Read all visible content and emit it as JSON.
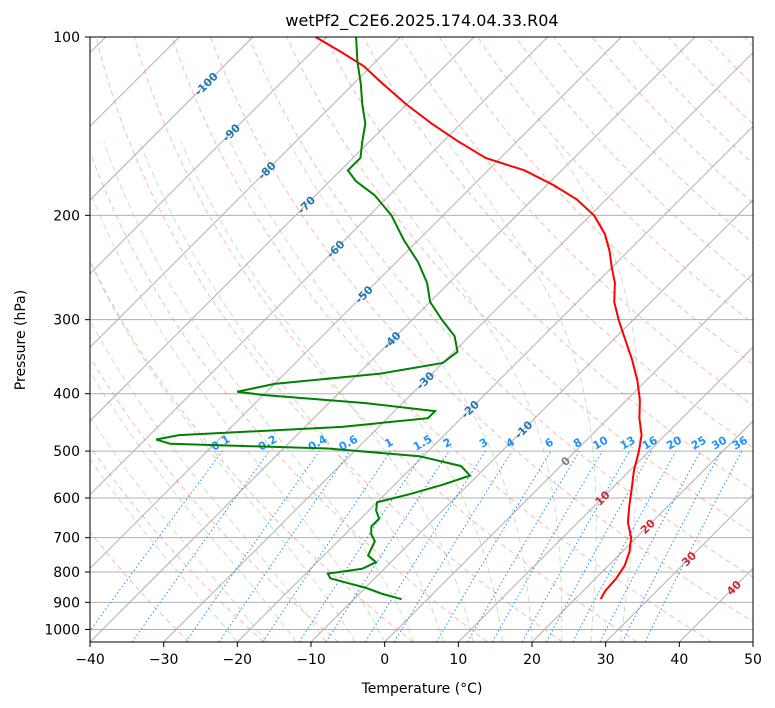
{
  "chart_data": {
    "type": "line",
    "title": "wetPf2_C2E6.2025.174.04.33.R04",
    "xlabel": "Temperature (°C)",
    "ylabel": "Pressure (hPa)",
    "xlim": [
      -40,
      50
    ],
    "ylim": [
      1050,
      100
    ],
    "y_scale": "log",
    "skew_deg": 45,
    "grid": true,
    "x_ticks": [
      -40,
      -30,
      -20,
      -10,
      0,
      10,
      20,
      30,
      40,
      50
    ],
    "y_ticks": [
      100,
      200,
      300,
      400,
      500,
      600,
      700,
      800,
      900,
      1000
    ],
    "series": [
      {
        "color": "#ff0000",
        "points": [
          [
            889,
            23.5
          ],
          [
            860,
            23.0
          ],
          [
            820,
            22.8
          ],
          [
            780,
            22.2
          ],
          [
            740,
            21.0
          ],
          [
            700,
            19.3
          ],
          [
            660,
            16.8
          ],
          [
            620,
            14.8
          ],
          [
            580,
            12.8
          ],
          [
            540,
            10.6
          ],
          [
            500,
            8.6
          ],
          [
            470,
            6.8
          ],
          [
            440,
            4.2
          ],
          [
            410,
            1.8
          ],
          [
            380,
            -1.2
          ],
          [
            350,
            -4.8
          ],
          [
            320,
            -9.0
          ],
          [
            300,
            -12.0
          ],
          [
            280,
            -15.0
          ],
          [
            260,
            -17.5
          ],
          [
            245,
            -20.0
          ],
          [
            230,
            -22.5
          ],
          [
            215,
            -25.5
          ],
          [
            200,
            -29.5
          ],
          [
            188,
            -34.0
          ],
          [
            178,
            -39.0
          ],
          [
            168,
            -45.0
          ],
          [
            160,
            -52.0
          ],
          [
            150,
            -58.0
          ],
          [
            140,
            -64.0
          ],
          [
            130,
            -70.0
          ],
          [
            120,
            -76.0
          ],
          [
            112,
            -81.0
          ],
          [
            106,
            -86.0
          ],
          [
            100,
            -91.5
          ]
        ]
      },
      {
        "color": "#008000",
        "points": [
          [
            889,
            -3.5
          ],
          [
            870,
            -7.0
          ],
          [
            850,
            -10.0
          ],
          [
            835,
            -13.0
          ],
          [
            820,
            -16.0
          ],
          [
            805,
            -17.0
          ],
          [
            790,
            -13.0
          ],
          [
            770,
            -12.0
          ],
          [
            750,
            -14.0
          ],
          [
            730,
            -14.5
          ],
          [
            710,
            -15.0
          ],
          [
            690,
            -16.5
          ],
          [
            670,
            -17.5
          ],
          [
            650,
            -17.5
          ],
          [
            630,
            -19.0
          ],
          [
            610,
            -20.0
          ],
          [
            590,
            -16.5
          ],
          [
            570,
            -13.5
          ],
          [
            550,
            -11.0
          ],
          [
            530,
            -13.5
          ],
          [
            510,
            -20.5
          ],
          [
            495,
            -34.0
          ],
          [
            486,
            -56.0
          ],
          [
            478,
            -58.5
          ],
          [
            470,
            -56.0
          ],
          [
            455,
            -35.0
          ],
          [
            440,
            -24.5
          ],
          [
            428,
            -24.5
          ],
          [
            415,
            -35.0
          ],
          [
            402,
            -50.0
          ],
          [
            397,
            -54.0
          ],
          [
            385,
            -50.0
          ],
          [
            370,
            -37.0
          ],
          [
            355,
            -30.0
          ],
          [
            340,
            -29.5
          ],
          [
            320,
            -32.0
          ],
          [
            300,
            -36.0
          ],
          [
            280,
            -40.0
          ],
          [
            260,
            -43.0
          ],
          [
            240,
            -47.0
          ],
          [
            220,
            -52.0
          ],
          [
            200,
            -57.0
          ],
          [
            185,
            -62.0
          ],
          [
            175,
            -66.5
          ],
          [
            168,
            -69.0
          ],
          [
            160,
            -69.0
          ],
          [
            150,
            -71.0
          ],
          [
            140,
            -73.0
          ],
          [
            130,
            -76.0
          ],
          [
            120,
            -79.0
          ],
          [
            110,
            -82.5
          ],
          [
            100,
            -86.0
          ]
        ]
      }
    ],
    "dry_adiabats_theta_C": [
      -30,
      -20,
      -10,
      0,
      10,
      20,
      30,
      40,
      50,
      60,
      70,
      80,
      90,
      100,
      110,
      120,
      130,
      140,
      150,
      160,
      170,
      180,
      190,
      200,
      210,
      220
    ],
    "moist_adiabats_start_C": [
      -20,
      -16,
      -12,
      -8,
      -4,
      0,
      4,
      8,
      12,
      16,
      20,
      24,
      28,
      32
    ],
    "mixing_ratio_lines_gkg": [
      "0.1",
      "0.2",
      "0.4",
      "0.6",
      "1",
      "1.5",
      "2",
      "3",
      "4",
      "6",
      "8",
      "10",
      "13",
      "16",
      "20",
      "25",
      "30",
      "36"
    ],
    "isotherm_labels_C": [
      "-100",
      "-90",
      "-80",
      "-70",
      "-60",
      "-50",
      "-40",
      "-30",
      "-20",
      "-10",
      "0",
      "10",
      "20",
      "30",
      "40"
    ],
    "colors": {
      "temperature": "#ff0000",
      "dewpoint": "#008000",
      "grid": "#b0b0b0",
      "dry_adiabat": "#fa8072",
      "moist_adiabat": "#9fce9f",
      "mixing_ratio": "#1e90ff",
      "isotherm_label_cold": "#1f77b4",
      "isotherm_label_zero": "#808080",
      "isotherm_label_warm": "#d62728"
    }
  }
}
